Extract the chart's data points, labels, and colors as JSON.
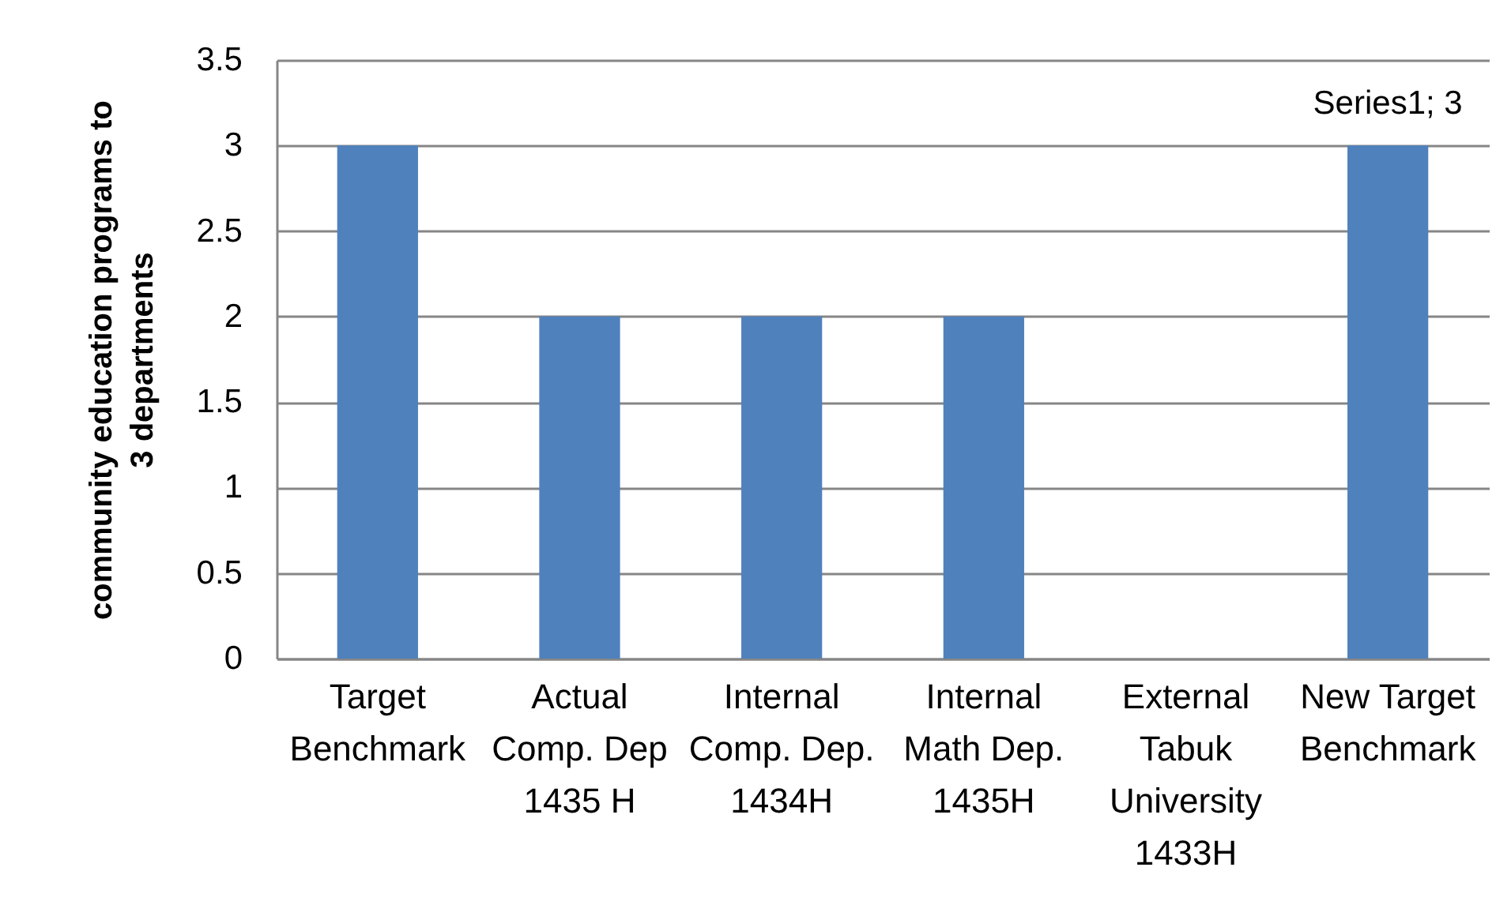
{
  "chart_data": {
    "type": "bar",
    "ylabel": "community education programs to 3 departments",
    "categories": [
      "Target Benchmark",
      "Actual Comp. Dep 1435 H",
      "Internal Comp. Dep. 1434H",
      "Internal Math Dep. 1435H",
      "External Tabuk University 1433H",
      "New Target Benchmark"
    ],
    "values": [
      3,
      2,
      2,
      2,
      0,
      3
    ],
    "value_labels": [
      null,
      null,
      null,
      null,
      null,
      "Series1; 3"
    ],
    "color": "#4f81bd",
    "ylim": [
      0,
      3.5
    ],
    "yticks": [
      0,
      0.5,
      1,
      1.5,
      2,
      2.5,
      3,
      3.5
    ],
    "grid": "y"
  }
}
